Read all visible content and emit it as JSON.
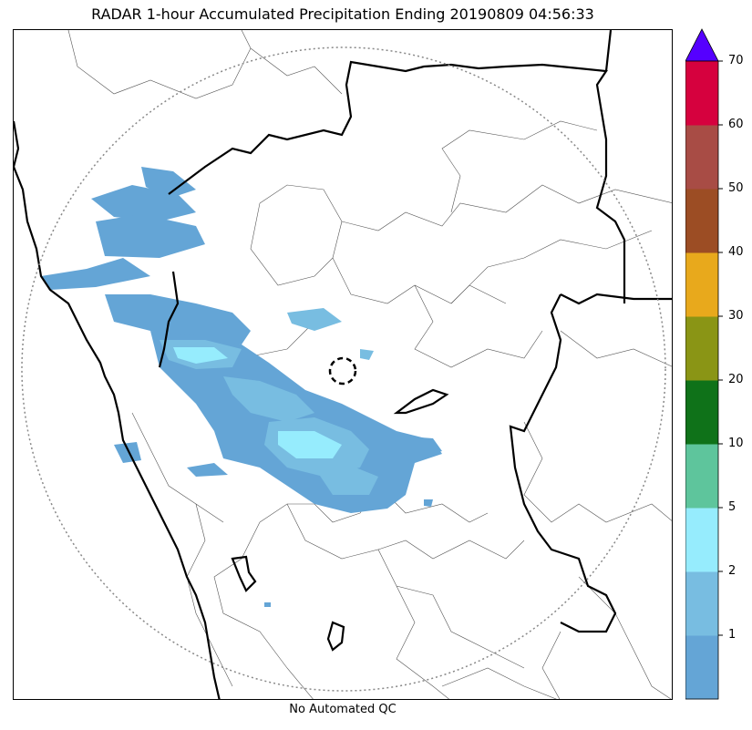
{
  "title": "RADAR 1-hour Accumulated Precipitation Ending 20190809 04:56:33",
  "caption": "No Automated QC",
  "colorbar": {
    "extend_color": "#5500ff",
    "bins": [
      {
        "color": "#64a5d6"
      },
      {
        "color": "#78bde1"
      },
      {
        "color": "#96ecfd"
      },
      {
        "color": "#5ec59c"
      },
      {
        "color": "#0f7219"
      },
      {
        "color": "#8a9515"
      },
      {
        "color": "#e8a91c"
      },
      {
        "color": "#9c4d24"
      },
      {
        "color": "#a84c45"
      },
      {
        "color": "#d6013e"
      }
    ],
    "tick_labels": [
      "1",
      "2",
      "5",
      "10",
      "20",
      "30",
      "40",
      "50",
      "60",
      "70"
    ]
  }
}
